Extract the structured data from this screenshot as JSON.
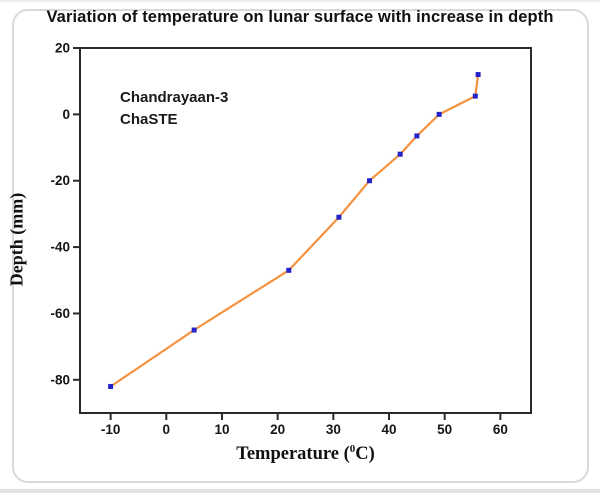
{
  "chart_data": {
    "type": "line",
    "title": "Variation of temperature on lunar surface with increase in depth",
    "annotation_line1": "Chandrayaan-3",
    "annotation_line2": "ChaSTE",
    "xlabel_prefix": "Temperature (",
    "xlabel_sup": "0",
    "xlabel_suffix": "C)",
    "ylabel": "Depth (mm)",
    "x": [
      -10,
      5,
      22,
      31,
      36.5,
      42,
      45,
      49,
      55.5,
      56
    ],
    "y": [
      -82,
      -65,
      -47,
      -31,
      -20,
      -12,
      -6.5,
      0,
      5.5,
      12
    ],
    "xticks": [
      -10,
      0,
      10,
      20,
      30,
      40,
      50,
      60
    ],
    "yticks": [
      20,
      0,
      -20,
      -40,
      -60,
      -80
    ],
    "xlim": [
      -15.5,
      65.5
    ],
    "ylim": [
      -90,
      20
    ],
    "grid": false,
    "legend": "none",
    "series_name": "temperature-vs-depth",
    "colors": {
      "line": "#F6913E",
      "marker": "#2323C9",
      "axis": "#2b2b2b",
      "title": "#111111",
      "card_border": "#d9d9d9"
    }
  }
}
